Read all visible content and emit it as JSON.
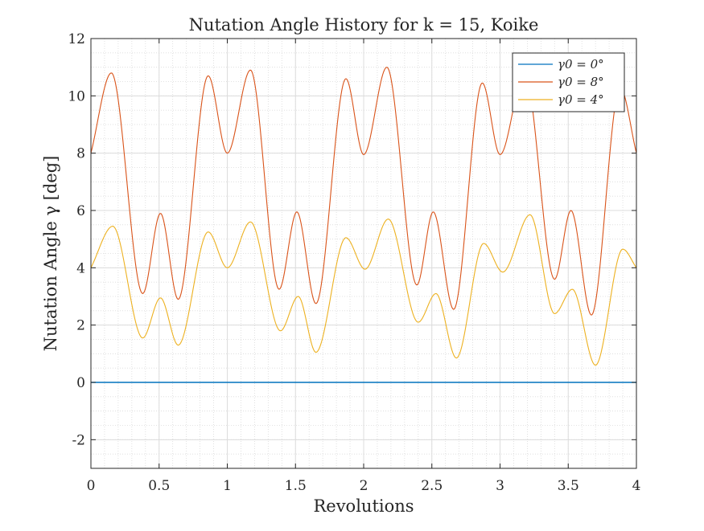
{
  "chart_data": {
    "type": "line",
    "title": "Nutation Angle History for k = 15, Koike",
    "xlabel": "Revolutions",
    "ylabel": "Nutation Angle γ [deg]",
    "xlim": [
      0,
      4
    ],
    "ylim": [
      -3,
      12
    ],
    "xticks": [
      0,
      0.5,
      1,
      1.5,
      2,
      2.5,
      3,
      3.5,
      4
    ],
    "xtick_labels": [
      "0",
      "0.5",
      "1",
      "1.5",
      "2",
      "2.5",
      "3",
      "3.5",
      "4"
    ],
    "yticks": [
      -2,
      0,
      2,
      4,
      6,
      8,
      10,
      12
    ],
    "ytick_labels": [
      "-2",
      "0",
      "2",
      "4",
      "6",
      "8",
      "10",
      "12"
    ],
    "grid": true,
    "minor_grid": true,
    "legend_position": "top-right",
    "series": [
      {
        "name": "γ0 = 0°",
        "color": "#0072BD",
        "x": [
          0,
          4
        ],
        "y": [
          0,
          0
        ]
      },
      {
        "name": "γ0 = 8°",
        "color": "#D95319",
        "x": [
          0,
          0.15,
          0.38,
          0.51,
          0.64,
          0.86,
          1.0,
          1.17,
          1.38,
          1.51,
          1.65,
          1.87,
          2.0,
          2.17,
          2.39,
          2.51,
          2.66,
          2.87,
          3.0,
          3.18,
          3.4,
          3.52,
          3.67,
          3.88,
          4.0
        ],
        "y": [
          8.0,
          10.8,
          3.1,
          5.9,
          2.9,
          10.7,
          8.0,
          10.9,
          3.25,
          5.95,
          2.75,
          10.6,
          7.95,
          11.0,
          3.4,
          5.95,
          2.55,
          10.45,
          7.95,
          10.8,
          3.6,
          6.0,
          2.35,
          10.3,
          8.0
        ]
      },
      {
        "name": "γ0 = 4°",
        "color": "#EDB120",
        "x": [
          0,
          0.16,
          0.38,
          0.51,
          0.64,
          0.86,
          1.0,
          1.17,
          1.39,
          1.52,
          1.65,
          1.87,
          2.01,
          2.18,
          2.4,
          2.53,
          2.68,
          2.88,
          3.02,
          3.22,
          3.4,
          3.53,
          3.7,
          3.9,
          4.0
        ],
        "y": [
          4.0,
          5.45,
          1.55,
          2.95,
          1.3,
          5.25,
          4.0,
          5.6,
          1.8,
          3.0,
          1.05,
          5.05,
          3.95,
          5.7,
          2.1,
          3.1,
          0.85,
          4.85,
          3.85,
          5.85,
          2.4,
          3.25,
          0.6,
          4.65,
          4.0
        ]
      }
    ]
  }
}
